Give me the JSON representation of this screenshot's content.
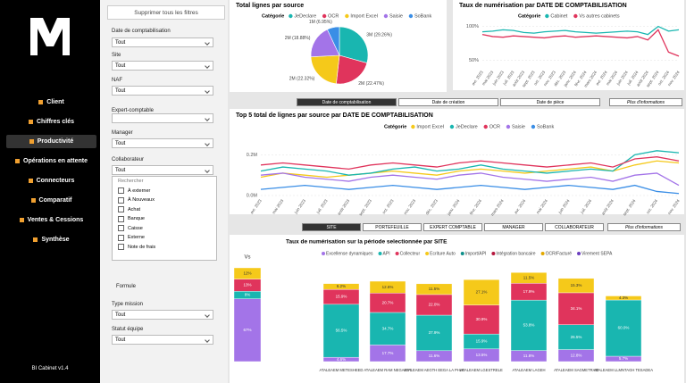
{
  "sidebar": {
    "nav": [
      "Client",
      "Chiffres clés",
      "Productivité",
      "Opérations en attente",
      "Connecteurs",
      "Comparatif",
      "Ventes & Cessions",
      "Synthèse"
    ],
    "active": 2,
    "footer": "BI Cabinet v1.4"
  },
  "filters": {
    "clear_button": "Supprimer tous les filtres",
    "fields": [
      {
        "label": "Date de comptabilisation",
        "value": "Tout"
      },
      {
        "label": "Site",
        "value": "Tout"
      },
      {
        "label": "NAF",
        "value": "Tout"
      },
      {
        "label": "Expert-comptable"
      },
      {
        "label": "Manager",
        "value": "Tout"
      },
      {
        "label": "Collaborateur",
        "value": "Tout"
      },
      {
        "label": "Formule"
      },
      {
        "label": "Type mission",
        "value": "Tout"
      },
      {
        "label": "Statut équipe",
        "value": "Tout"
      }
    ],
    "dropdown": {
      "search": "Rechercher",
      "options": [
        "À externer",
        "À Nouveaux",
        "Achat",
        "Banque",
        "Caisse",
        "Externe",
        "Note de frais"
      ]
    }
  },
  "tabs_top": {
    "items": [
      "Date de comptabilisation",
      "Date de création",
      "Date de pièce"
    ],
    "active": 0,
    "more": "Plus d'informations"
  },
  "tabs_bottom": {
    "items": [
      "SITE",
      "PORTEFEUILLE",
      "EXPERT COMPTABLE",
      "MANAGER",
      "COLLABORATEUR"
    ],
    "active": 0,
    "more": "Plus d'informations"
  },
  "chart_data": [
    {
      "type": "pie",
      "title": "Total lignes par source",
      "legend_title": "Catégorie",
      "categories": [
        "JeDeclare",
        "OCR",
        "Import Excel",
        "Saisie",
        "SoBank"
      ],
      "values": [
        29.26,
        22.47,
        22.32,
        18.88,
        6.95
      ],
      "value_labels": [
        "3M (29.26%)",
        "2M (22.47%)",
        "2M (22.32%)",
        "2M (18.88%)",
        "1M (6.95%)"
      ],
      "colors": [
        "#19b6b0",
        "#e0345c",
        "#f5c91a",
        "#a374e8",
        "#3a8ee6"
      ]
    },
    {
      "type": "line",
      "title": "Taux de numérisation par DATE DE COMPTABILISATION",
      "legend_title": "Catégorie",
      "categories": [
        "avr. 2023",
        "mai 2023",
        "juin 2023",
        "juil. 2023",
        "août 2023",
        "sept. 2023",
        "oct. 2023",
        "nov. 2023",
        "déc. 2023",
        "janv. 2024",
        "févr. 2024",
        "mars 2024",
        "avr. 2024",
        "mai 2024",
        "juin 2024",
        "juil. 2024",
        "août 2024",
        "sept. 2024",
        "oct. 2024",
        "nov. 2024"
      ],
      "series": [
        {
          "name": "Cabinet",
          "color": "#19b6b0",
          "values": [
            92,
            93,
            95,
            94,
            91,
            90,
            92,
            93,
            94,
            92,
            91,
            90,
            91,
            92,
            93,
            92,
            88,
            100,
            93,
            95
          ]
        },
        {
          "name": "Vs autres cabinets",
          "color": "#e0345c",
          "values": [
            88,
            85,
            84,
            86,
            85,
            84,
            83,
            85,
            86,
            84,
            85,
            86,
            85,
            84,
            83,
            85,
            80,
            95,
            62,
            56
          ]
        }
      ],
      "ylim": [
        40,
        110
      ],
      "yticks": [
        {
          "value": 100,
          "label": "100%"
        },
        {
          "value": 50,
          "label": "50%"
        }
      ]
    },
    {
      "type": "line",
      "title": "Top 5 total de lignes par source par DATE DE COMPTABILISATION",
      "legend_title": "Catégorie",
      "categories": [
        "avr. 2023",
        "mai 2023",
        "juin 2023",
        "juil. 2023",
        "août 2023",
        "sept. 2023",
        "oct. 2023",
        "nov. 2023",
        "déc. 2023",
        "janv. 2024",
        "févr. 2024",
        "mars 2024",
        "avr. 2024",
        "mai 2024",
        "juin 2024",
        "juil. 2024",
        "août 2024",
        "sept. 2024",
        "oct. 2024",
        "nov. 2024"
      ],
      "series": [
        {
          "name": "Import Excel",
          "color": "#f5c91a",
          "values": [
            0.09,
            0.11,
            0.1,
            0.09,
            0.1,
            0.11,
            0.12,
            0.11,
            0.1,
            0.12,
            0.13,
            0.12,
            0.11,
            0.12,
            0.13,
            0.14,
            0.12,
            0.15,
            0.17,
            0.16
          ]
        },
        {
          "name": "JeDeclare",
          "color": "#19b6b0",
          "values": [
            0.12,
            0.14,
            0.13,
            0.12,
            0.1,
            0.11,
            0.13,
            0.14,
            0.12,
            0.13,
            0.15,
            0.13,
            0.12,
            0.11,
            0.12,
            0.13,
            0.12,
            0.2,
            0.22,
            0.21
          ]
        },
        {
          "name": "OCR",
          "color": "#e0345c",
          "values": [
            0.15,
            0.16,
            0.15,
            0.14,
            0.13,
            0.15,
            0.16,
            0.15,
            0.14,
            0.16,
            0.17,
            0.16,
            0.15,
            0.14,
            0.15,
            0.16,
            0.14,
            0.18,
            0.19,
            0.17
          ]
        },
        {
          "name": "Saisie",
          "color": "#a374e8",
          "values": [
            0.1,
            0.11,
            0.09,
            0.08,
            0.07,
            0.09,
            0.1,
            0.09,
            0.08,
            0.1,
            0.11,
            0.09,
            0.08,
            0.07,
            0.08,
            0.09,
            0.07,
            0.1,
            0.11,
            0.05
          ]
        },
        {
          "name": "SoBank",
          "color": "#3a8ee6",
          "values": [
            0.03,
            0.04,
            0.05,
            0.04,
            0.03,
            0.04,
            0.05,
            0.04,
            0.03,
            0.04,
            0.05,
            0.04,
            0.03,
            0.04,
            0.05,
            0.04,
            0.03,
            0.05,
            0.02,
            0.01
          ]
        }
      ],
      "ylim": [
        0,
        0.25
      ],
      "yticks": [
        {
          "value": 0,
          "label": "0.0M"
        },
        {
          "value": 0.2,
          "label": "0.2M"
        }
      ]
    },
    {
      "type": "bar",
      "stacked": true,
      "title": "Taux de numérisation sur la période selectionnée par SITE",
      "categories": [
        "Vs",
        "ATALEAEM METESHEED",
        "ATALEAEM RAM NEGAEET",
        "ATALEAEM AEGTH EEGA LA PHLE",
        "ATALEAEM LGESTRELE",
        "ATALEAEM LAGEH",
        "ATALEAEM SAGMETRAM",
        "ATALEAEM LLMNTAGH TESADEA"
      ],
      "series": [
        {
          "name": "Excellense dynamiques",
          "color": "#a374e8",
          "values": [
            67,
            4.6,
            17.7,
            11.6,
            13.5,
            11.8,
            12.8,
            5.7
          ],
          "value_labels": [
            "67%",
            "4.6%",
            "17.7%",
            "11.6%",
            "13.5%",
            "11.8%",
            "12.8%",
            "5.7%"
          ]
        },
        {
          "name": "API",
          "color": "#19b6b0",
          "values": [
            8,
            56.5,
            34.7,
            37.9,
            15.9,
            53.8,
            26.5,
            60.0
          ],
          "value_labels": [
            "8%",
            "56.5%",
            "34.7%",
            "37.9%",
            "15.9%",
            "53.8%",
            "26.5%",
            "60.0%"
          ]
        },
        {
          "name": "Collecteur",
          "color": "#e0345c",
          "values": [
            13,
            15.9,
            20.7,
            22.0,
            30.9,
            17.9,
            34.1,
            null
          ],
          "value_labels": [
            "13%",
            "15.9%",
            "20.7%",
            "22.0%",
            "30.9%",
            "17.9%",
            "34.1%",
            null
          ]
        },
        {
          "name": "Ecriture Auto",
          "color": "#f5c91a",
          "values": [
            12,
            6.2,
            12.6,
            11.5,
            27.1,
            11.5,
            15.3,
            4.3
          ],
          "value_labels": [
            "12%",
            "6.2%",
            "12.6%",
            "11.5%",
            "27.1%",
            "11.5%",
            "15.3%",
            "4.3%"
          ]
        }
      ],
      "more_legend": [
        {
          "name": "Import/API",
          "color": "#0f8f8a"
        },
        {
          "name": "Intégration bancaire",
          "color": "#b5173d"
        },
        {
          "name": "OCR/Facturé",
          "color": "#e3a800"
        },
        {
          "name": "Virement SEPA",
          "color": "#6b3fbf"
        }
      ],
      "ylim": [
        0,
        100
      ]
    }
  ]
}
